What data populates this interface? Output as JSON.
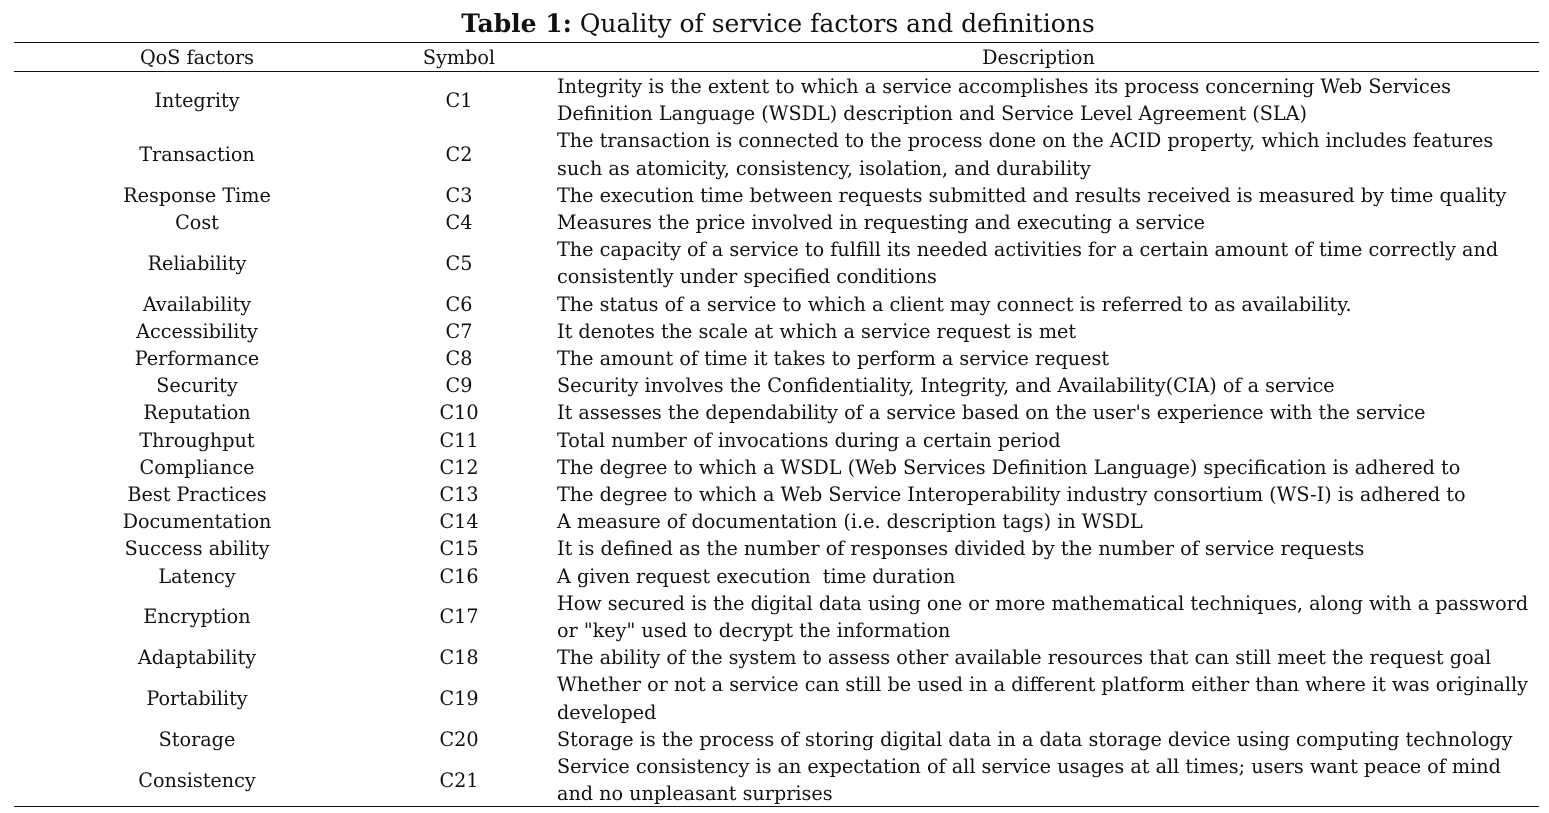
{
  "caption": {
    "label": "Table 1:",
    "text": "Quality of service factors and definitions"
  },
  "table": {
    "headers": [
      "QoS factors",
      "Symbol",
      "Description"
    ],
    "rows": [
      {
        "factor": "Integrity",
        "symbol": "C1",
        "description": "Integrity is the extent to which a service accomplishes its process concerning Web Services Definition Language (WSDL) description and Service Level Agreement (SLA)"
      },
      {
        "factor": "Transaction",
        "symbol": "C2",
        "description": "The transaction is connected to the process done on the ACID property, which includes features such as atomicity, consistency, isolation, and durability"
      },
      {
        "factor": "Response Time",
        "symbol": "C3",
        "description": "The execution time between requests submitted and results received is measured by time quality"
      },
      {
        "factor": "Cost",
        "symbol": "C4",
        "description": "Measures the price involved in requesting and executing a service"
      },
      {
        "factor": "Reliability",
        "symbol": "C5",
        "description": "The capacity of a service to fulfill its needed activities for a certain amount of time correctly and consistently under specified conditions"
      },
      {
        "factor": "Availability",
        "symbol": "C6",
        "description": "The status of a service to which a client may connect is referred to as availability."
      },
      {
        "factor": "Accessibility",
        "symbol": "C7",
        "description": "It denotes the scale at which a service request is met"
      },
      {
        "factor": "Performance",
        "symbol": "C8",
        "description": "The amount of time it takes to perform a service request"
      },
      {
        "factor": "Security",
        "symbol": "C9",
        "description": "Security involves the Confidentiality, Integrity, and Availability(CIA) of a service"
      },
      {
        "factor": "Reputation",
        "symbol": "C10",
        "description": "It assesses the dependability of a service based on the user's experience with the service"
      },
      {
        "factor": "Throughput",
        "symbol": "C11",
        "description": "Total number of invocations during a certain period"
      },
      {
        "factor": "Compliance",
        "symbol": "C12",
        "description": "The degree to which a WSDL (Web Services Definition Language) specification is adhered to"
      },
      {
        "factor": "Best Practices",
        "symbol": "C13",
        "description": "The degree to which a Web Service Interoperability industry consortium (WS-I) is adhered to"
      },
      {
        "factor": "Documentation",
        "symbol": "C14",
        "description": "A measure of documentation (i.e. description tags) in WSDL"
      },
      {
        "factor": "Success ability",
        "symbol": "C15",
        "description": "It is defined as the number of responses divided by the number of service requests"
      },
      {
        "factor": "Latency",
        "symbol": "C16",
        "description": "A given request execution  time duration"
      },
      {
        "factor": "Encryption",
        "symbol": "C17",
        "description": "How secured is the digital data using one or more mathematical techniques, along with a password or \"key\" used to decrypt the information"
      },
      {
        "factor": "Adaptability",
        "symbol": "C18",
        "description": "The ability of the system to assess other available resources that can still meet the request goal"
      },
      {
        "factor": "Portability",
        "symbol": "C19",
        "description": "Whether or not a service can still be used in a different platform either than where it was originally developed"
      },
      {
        "factor": "Storage",
        "symbol": "C20",
        "description": "Storage is the process of storing digital data in a data storage device using computing technology"
      },
      {
        "factor": "Consistency",
        "symbol": "C21",
        "description": "Service consistency is an expectation of all service usages at all times; users want peace of mind and no unpleasant surprises"
      }
    ]
  }
}
